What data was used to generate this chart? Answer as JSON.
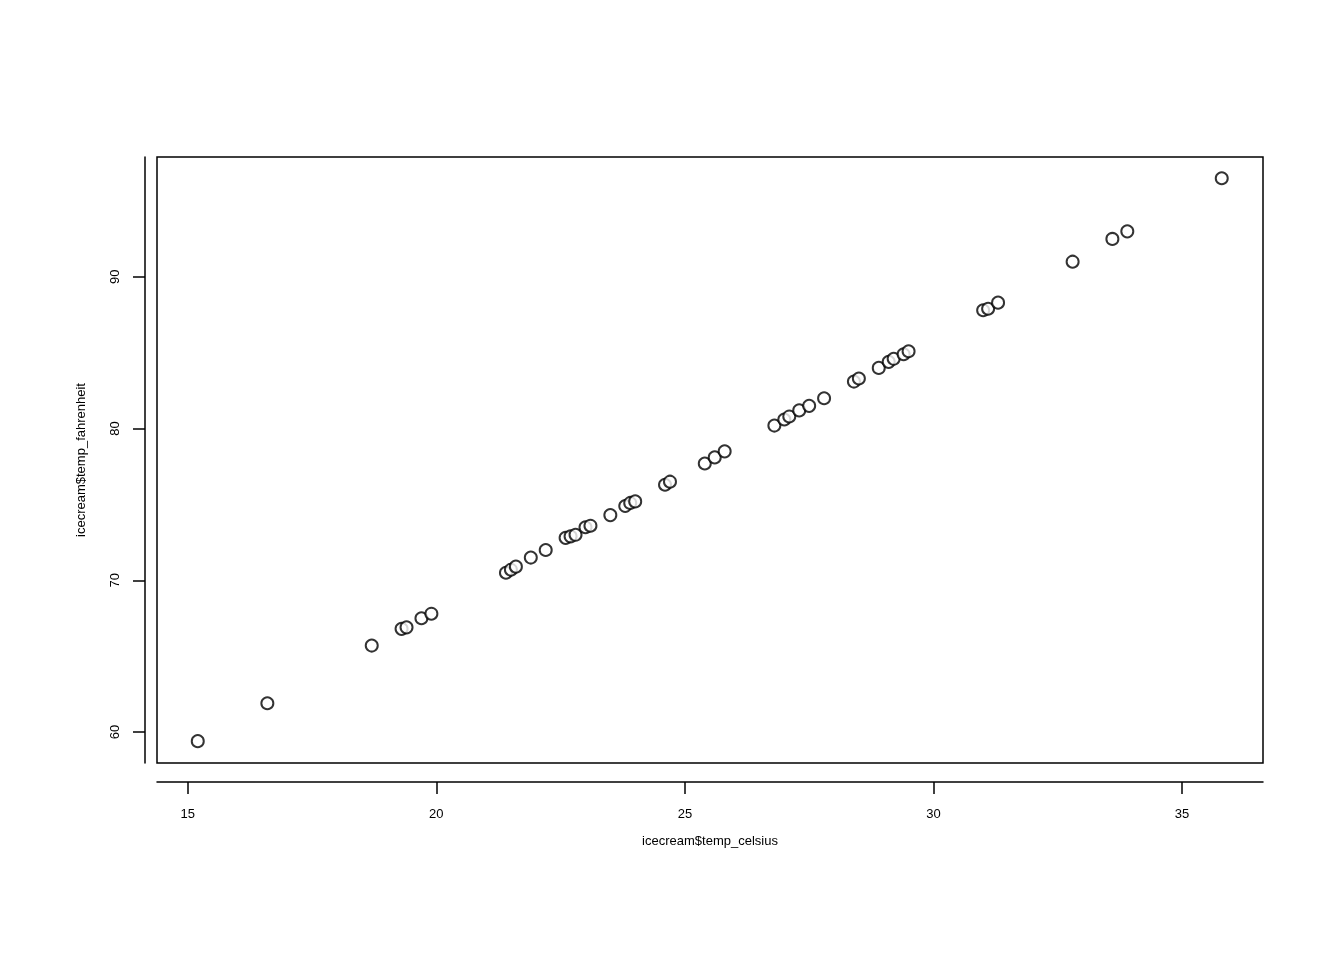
{
  "chart_data": {
    "type": "scatter",
    "xlabel": "icecream$temp_celsius",
    "ylabel": "icecream$temp_fahrenheit",
    "x": [
      15.2,
      16.6,
      18.7,
      19.3,
      19.4,
      19.7,
      19.9,
      21.4,
      21.5,
      21.6,
      21.9,
      22.2,
      22.6,
      22.7,
      22.8,
      23.0,
      23.1,
      23.5,
      23.8,
      23.9,
      24.0,
      24.6,
      24.7,
      25.4,
      25.6,
      25.8,
      26.8,
      27.0,
      27.1,
      27.3,
      27.5,
      27.8,
      28.4,
      28.5,
      28.9,
      29.1,
      29.2,
      29.4,
      29.5,
      31.0,
      31.1,
      31.3,
      32.8,
      33.6,
      33.9,
      35.8
    ],
    "values": [
      59.4,
      61.9,
      65.7,
      66.8,
      66.9,
      67.5,
      67.8,
      70.5,
      70.7,
      70.9,
      71.5,
      72.0,
      72.8,
      72.9,
      73.0,
      73.5,
      73.6,
      74.3,
      74.9,
      75.1,
      75.2,
      76.3,
      76.5,
      77.7,
      78.1,
      78.5,
      80.2,
      80.6,
      80.8,
      81.2,
      81.5,
      82.0,
      83.1,
      83.3,
      84.0,
      84.4,
      84.6,
      84.9,
      85.1,
      87.8,
      87.9,
      88.3,
      91.0,
      92.5,
      93.0,
      96.5
    ],
    "color": "#000000",
    "marker": "circle",
    "grid": false,
    "xlim": [
      14.38,
      36.63
    ],
    "xticks": [
      15,
      20,
      25,
      30,
      35
    ],
    "ylim": [
      57.96,
      97.9
    ],
    "yticks": [
      60,
      70,
      80,
      90
    ]
  }
}
